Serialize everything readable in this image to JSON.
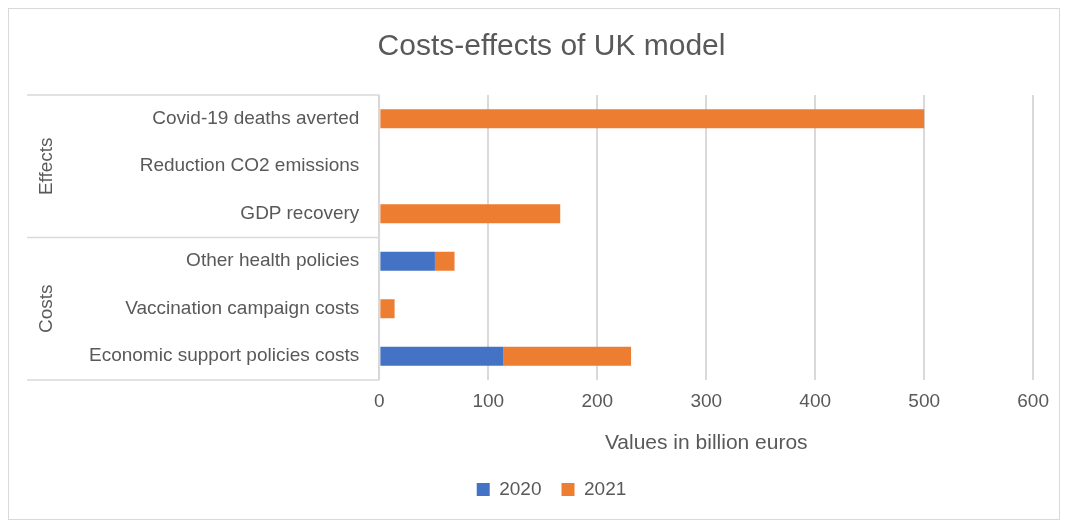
{
  "chart_data": {
    "type": "bar",
    "orientation": "horizontal",
    "stacked": true,
    "title": "Costs-effects of UK model",
    "xlabel": "Values in billion euros",
    "categories": [
      "Covid-19 deaths averted",
      "Reduction CO2 emissions",
      "GDP recovery",
      "Other health policies",
      "Vaccination campaign costs",
      "Economic support policies costs"
    ],
    "series": [
      {
        "name": "2020",
        "color": "#4472c4",
        "values": [
          null,
          null,
          null,
          51,
          null,
          114
        ]
      },
      {
        "name": "2021",
        "color": "#ed7d31",
        "values": [
          500,
          null,
          166,
          18,
          14,
          117
        ]
      }
    ],
    "xlim": [
      0,
      600
    ],
    "xticks": [
      0,
      100,
      200,
      300,
      400,
      500,
      600
    ],
    "grid": "x",
    "legend": "bottom",
    "annotations": [
      "Effects",
      "Costs"
    ]
  }
}
